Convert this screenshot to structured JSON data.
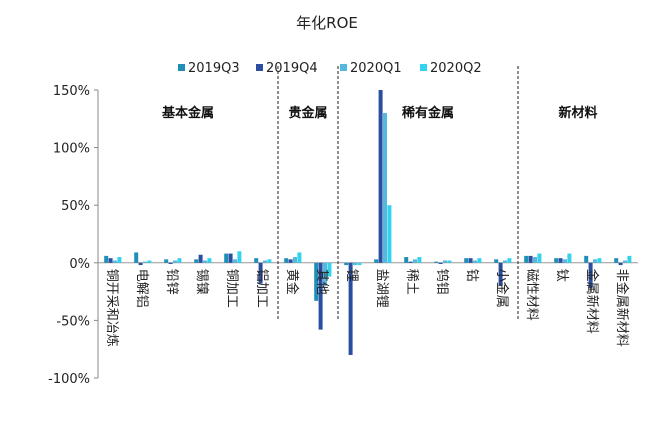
{
  "chart_data": {
    "type": "bar",
    "title": "年化ROE",
    "xlabel": "",
    "ylabel": "",
    "ylim": [
      -100,
      150
    ],
    "yticks": [
      150,
      100,
      50,
      0,
      -50,
      -100
    ],
    "ytick_labels": [
      "150%",
      "100%",
      "50%",
      "0%",
      "-50%",
      "-100%"
    ],
    "grid": false,
    "legend": "top",
    "colors": [
      "#1f8fb8",
      "#2b4fa0",
      "#55b8de",
      "#33d3ee"
    ],
    "categories": [
      "铜开采和冶炼",
      "电解铝",
      "铅锌",
      "锡镍",
      "铜加工",
      "铝加工",
      "黄金",
      "其他",
      "锂",
      "盐湖锂",
      "稀土",
      "钨钼",
      "钴",
      "小金属",
      "磁性材料",
      "钛",
      "金属新材料",
      "非金属新材料"
    ],
    "series": [
      {
        "name": "2019Q3",
        "values": [
          6,
          9,
          3,
          3,
          8,
          4,
          4,
          -33,
          -2,
          3,
          5,
          1,
          4,
          3,
          6,
          4,
          6,
          4
        ]
      },
      {
        "name": "2019Q4",
        "values": [
          4,
          -2,
          -1,
          7,
          8,
          -18,
          3,
          -58,
          -80,
          150,
          1,
          -1,
          4,
          -20,
          6,
          4,
          -22,
          -2
        ]
      },
      {
        "name": "2020Q1",
        "values": [
          2,
          1,
          2,
          2,
          3,
          2,
          5,
          -20,
          -2,
          130,
          3,
          2,
          2,
          2,
          5,
          3,
          3,
          2
        ]
      },
      {
        "name": "2020Q2",
        "values": [
          5,
          2,
          4,
          4,
          10,
          3,
          9,
          -12,
          -2,
          50,
          5,
          2,
          4,
          4,
          8,
          8,
          4,
          6
        ]
      }
    ],
    "groups": [
      {
        "label": "基本金属",
        "start": 0,
        "end": 5
      },
      {
        "label": "贵金属",
        "start": 6,
        "end": 7
      },
      {
        "label": "稀有金属",
        "start": 8,
        "end": 13
      },
      {
        "label": "新材料",
        "start": 14,
        "end": 17
      }
    ]
  }
}
